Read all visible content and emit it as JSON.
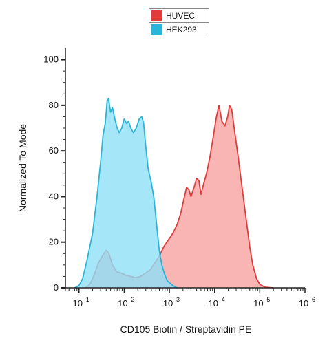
{
  "chart_data": {
    "type": "area",
    "title": "",
    "xlabel": "CD105 Biotin / Streptavidin PE",
    "ylabel": "Normalized To Mode",
    "xscale": "log",
    "xlim": [
      5,
      1000000
    ],
    "ylim": [
      0,
      105
    ],
    "yticks": [
      0,
      20,
      40,
      60,
      80,
      100
    ],
    "xticks": [
      {
        "value": 10,
        "base": "10",
        "exp": "1"
      },
      {
        "value": 100,
        "base": "10",
        "exp": "2"
      },
      {
        "value": 1000,
        "base": "10",
        "exp": "3"
      },
      {
        "value": 10000,
        "base": "10",
        "exp": "4"
      },
      {
        "value": 100000,
        "base": "10",
        "exp": "5"
      },
      {
        "value": 1000000,
        "base": "10",
        "exp": "6"
      }
    ],
    "grid": false,
    "legend_position": "top-center",
    "series": [
      {
        "name": "HUVEC",
        "color": "#e03c3c",
        "fill": "#f7a1a1",
        "points": [
          [
            14,
            0
          ],
          [
            18,
            2
          ],
          [
            22,
            6
          ],
          [
            27,
            11
          ],
          [
            33,
            14
          ],
          [
            40,
            16.5
          ],
          [
            46,
            15
          ],
          [
            55,
            10
          ],
          [
            68,
            7
          ],
          [
            85,
            6.5
          ],
          [
            110,
            5.5
          ],
          [
            140,
            5
          ],
          [
            180,
            4.5
          ],
          [
            230,
            5
          ],
          [
            300,
            6.5
          ],
          [
            380,
            8
          ],
          [
            480,
            11
          ],
          [
            600,
            14
          ],
          [
            750,
            18
          ],
          [
            950,
            21
          ],
          [
            1200,
            24
          ],
          [
            1500,
            28
          ],
          [
            1800,
            33
          ],
          [
            2100,
            39
          ],
          [
            2400,
            44
          ],
          [
            2700,
            43
          ],
          [
            3000,
            40
          ],
          [
            3500,
            44
          ],
          [
            4000,
            48
          ],
          [
            4500,
            47
          ],
          [
            5000,
            41
          ],
          [
            5800,
            46
          ],
          [
            6800,
            51
          ],
          [
            8000,
            58
          ],
          [
            9500,
            67
          ],
          [
            11000,
            75
          ],
          [
            12500,
            80
          ],
          [
            14500,
            73
          ],
          [
            17000,
            71
          ],
          [
            19500,
            75
          ],
          [
            21500,
            80
          ],
          [
            24000,
            78
          ],
          [
            28000,
            68
          ],
          [
            33000,
            58
          ],
          [
            40000,
            45
          ],
          [
            50000,
            30
          ],
          [
            60000,
            18
          ],
          [
            70000,
            10
          ],
          [
            85000,
            4
          ],
          [
            100000,
            1.5
          ],
          [
            130000,
            0.3
          ],
          [
            200000,
            0
          ]
        ]
      },
      {
        "name": "HEK293",
        "color": "#29b6d9",
        "fill": "#8fe0f7",
        "points": [
          [
            8,
            0
          ],
          [
            10,
            1
          ],
          [
            12,
            4
          ],
          [
            15,
            12
          ],
          [
            20,
            24
          ],
          [
            25,
            40
          ],
          [
            30,
            55
          ],
          [
            34,
            67
          ],
          [
            38,
            72
          ],
          [
            42,
            82
          ],
          [
            45,
            83
          ],
          [
            50,
            77
          ],
          [
            55,
            79
          ],
          [
            62,
            74
          ],
          [
            70,
            70
          ],
          [
            78,
            68
          ],
          [
            88,
            70
          ],
          [
            100,
            74
          ],
          [
            113,
            72
          ],
          [
            125,
            73
          ],
          [
            140,
            70
          ],
          [
            160,
            68
          ],
          [
            185,
            70
          ],
          [
            215,
            74
          ],
          [
            245,
            75
          ],
          [
            270,
            72
          ],
          [
            300,
            62
          ],
          [
            340,
            52
          ],
          [
            390,
            47
          ],
          [
            450,
            40
          ],
          [
            520,
            28
          ],
          [
            600,
            16
          ],
          [
            680,
            10
          ],
          [
            780,
            6
          ],
          [
            900,
            3
          ],
          [
            1100,
            1.5
          ],
          [
            1300,
            0.5
          ],
          [
            1500,
            0
          ]
        ]
      }
    ]
  }
}
